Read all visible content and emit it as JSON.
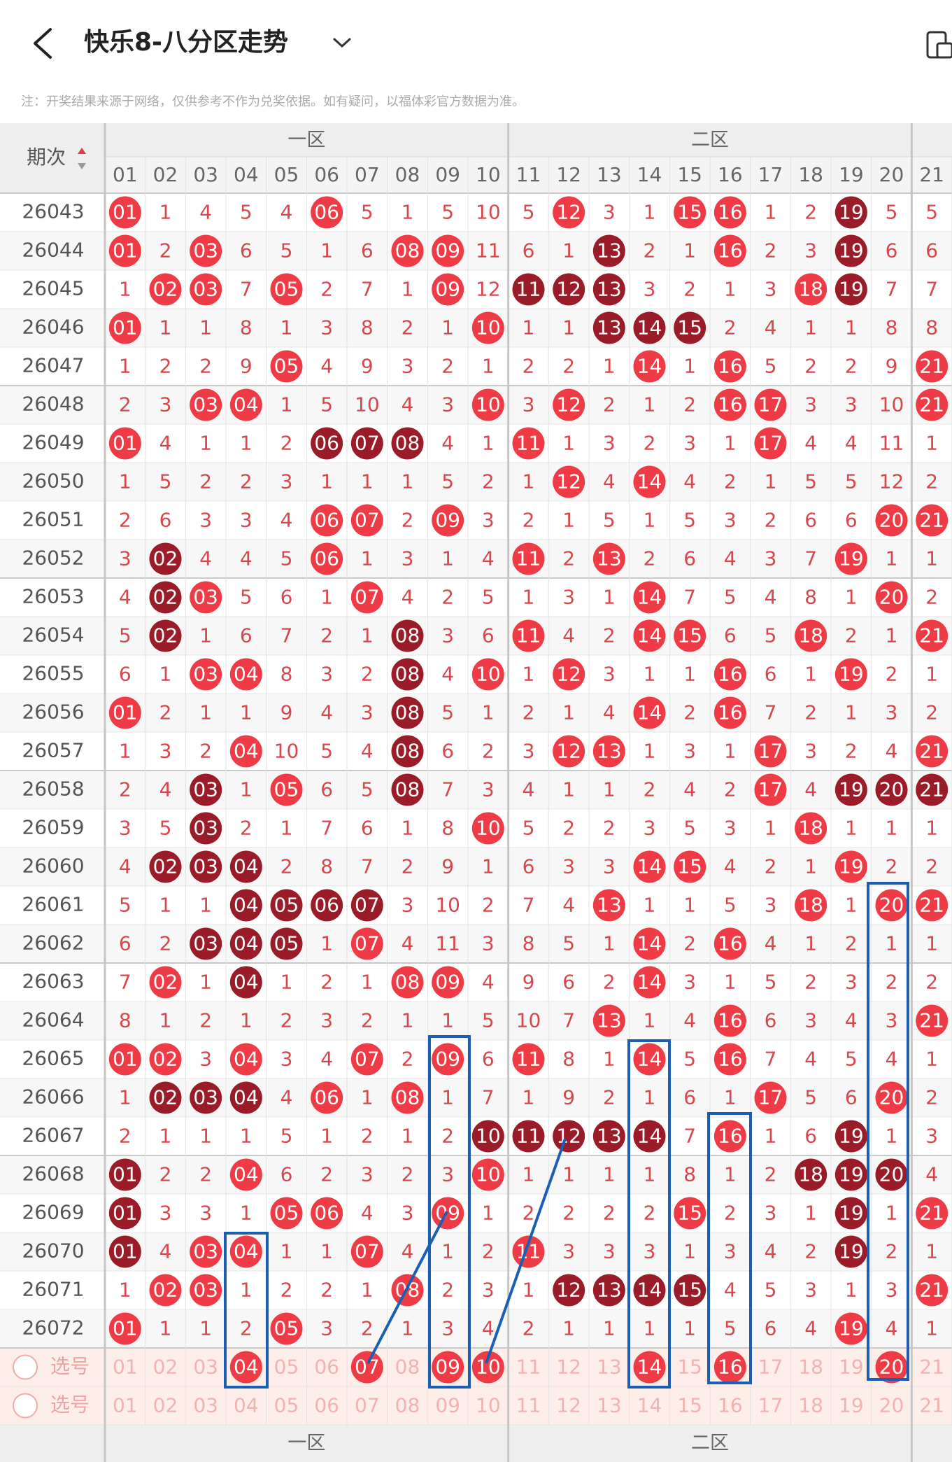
{
  "header": {
    "title": "快乐8-八分区走势"
  },
  "notice": "注：开奖结果来源于网络，仅供参考不作为兑奖依据。如有疑问，以福体彩官方数据为准。",
  "table": {
    "period_label": "期次",
    "zones": [
      "一区",
      "二区"
    ],
    "columns": [
      "01",
      "02",
      "03",
      "04",
      "05",
      "06",
      "07",
      "08",
      "09",
      "10",
      "11",
      "12",
      "13",
      "14",
      "15",
      "16",
      "17",
      "18",
      "19",
      "20",
      "21"
    ],
    "rows": [
      {
        "period": "26043",
        "cells": [
          "01",
          "1",
          "4",
          "5",
          "4",
          "06",
          "5",
          "1",
          "5",
          "10",
          "5",
          "12",
          "3",
          "1",
          "15",
          "16",
          "1",
          "2",
          "19",
          "5",
          "5"
        ],
        "marks": "r....r.....r..rr..d.."
      },
      {
        "period": "26044",
        "cells": [
          "01",
          "2",
          "03",
          "6",
          "5",
          "1",
          "6",
          "08",
          "09",
          "11",
          "6",
          "1",
          "13",
          "2",
          "1",
          "16",
          "2",
          "3",
          "19",
          "6",
          "6"
        ],
        "marks": "r.r....rr...d..r..d.."
      },
      {
        "period": "26045",
        "cells": [
          "1",
          "02",
          "03",
          "7",
          "05",
          "2",
          "7",
          "1",
          "09",
          "12",
          "11",
          "12",
          "13",
          "3",
          "2",
          "1",
          "3",
          "18",
          "19",
          "7",
          "7"
        ],
        "marks": ".rr.r...r.ddd....rd.."
      },
      {
        "period": "26046",
        "cells": [
          "01",
          "1",
          "1",
          "8",
          "1",
          "3",
          "8",
          "2",
          "1",
          "10",
          "1",
          "1",
          "13",
          "14",
          "15",
          "2",
          "4",
          "1",
          "1",
          "8",
          "8"
        ],
        "marks": "r........r..ddd......"
      },
      {
        "period": "26047",
        "cells": [
          "1",
          "2",
          "2",
          "9",
          "05",
          "4",
          "9",
          "3",
          "2",
          "1",
          "2",
          "2",
          "1",
          "14",
          "1",
          "16",
          "5",
          "2",
          "2",
          "9",
          "21"
        ],
        "marks": "....r........r.r....r"
      },
      {
        "period": "26048",
        "cells": [
          "2",
          "3",
          "03",
          "04",
          "1",
          "5",
          "10",
          "4",
          "3",
          "10",
          "3",
          "12",
          "2",
          "1",
          "2",
          "16",
          "17",
          "3",
          "3",
          "10",
          "21"
        ],
        "marks": "..rr.....r.r...rr...r"
      },
      {
        "period": "26049",
        "cells": [
          "01",
          "4",
          "1",
          "1",
          "2",
          "06",
          "07",
          "08",
          "4",
          "1",
          "11",
          "1",
          "3",
          "2",
          "3",
          "1",
          "17",
          "4",
          "4",
          "11",
          "1"
        ],
        "marks": "r....ddd..r.....r...."
      },
      {
        "period": "26050",
        "cells": [
          "1",
          "5",
          "2",
          "2",
          "3",
          "1",
          "1",
          "1",
          "5",
          "2",
          "1",
          "12",
          "4",
          "14",
          "4",
          "2",
          "1",
          "5",
          "5",
          "12",
          "2"
        ],
        "marks": "...........r.r......."
      },
      {
        "period": "26051",
        "cells": [
          "2",
          "6",
          "3",
          "3",
          "4",
          "06",
          "07",
          "2",
          "09",
          "3",
          "2",
          "1",
          "5",
          "1",
          "5",
          "3",
          "2",
          "6",
          "6",
          "20",
          "21"
        ],
        "marks": ".....rr.r..........rr"
      },
      {
        "period": "26052",
        "cells": [
          "3",
          "02",
          "4",
          "4",
          "5",
          "06",
          "1",
          "3",
          "1",
          "4",
          "11",
          "2",
          "13",
          "2",
          "6",
          "4",
          "3",
          "7",
          "19",
          "1",
          "1"
        ],
        "marks": ".d...r....r.r.....r.."
      },
      {
        "period": "26053",
        "cells": [
          "4",
          "02",
          "03",
          "5",
          "6",
          "1",
          "07",
          "4",
          "2",
          "5",
          "1",
          "3",
          "1",
          "14",
          "7",
          "5",
          "4",
          "8",
          "1",
          "20",
          "2"
        ],
        "marks": ".dr...r......r.....r."
      },
      {
        "period": "26054",
        "cells": [
          "5",
          "02",
          "1",
          "6",
          "7",
          "2",
          "1",
          "08",
          "3",
          "6",
          "11",
          "4",
          "2",
          "14",
          "15",
          "6",
          "5",
          "18",
          "2",
          "1",
          "21"
        ],
        "marks": ".d.....d..r..rr..r..r"
      },
      {
        "period": "26055",
        "cells": [
          "6",
          "1",
          "03",
          "04",
          "8",
          "3",
          "2",
          "08",
          "4",
          "10",
          "1",
          "12",
          "3",
          "1",
          "1",
          "16",
          "6",
          "1",
          "19",
          "2",
          "1"
        ],
        "marks": "..rr...d.r.r...r..r.."
      },
      {
        "period": "26056",
        "cells": [
          "01",
          "2",
          "1",
          "1",
          "9",
          "4",
          "3",
          "08",
          "5",
          "1",
          "2",
          "1",
          "4",
          "14",
          "2",
          "16",
          "7",
          "2",
          "1",
          "3",
          "2"
        ],
        "marks": "r......d.....r.r....."
      },
      {
        "period": "26057",
        "cells": [
          "1",
          "3",
          "2",
          "04",
          "10",
          "5",
          "4",
          "08",
          "6",
          "2",
          "3",
          "12",
          "13",
          "1",
          "3",
          "1",
          "17",
          "3",
          "2",
          "4",
          "21"
        ],
        "marks": "...r...d...rr...r...r"
      },
      {
        "period": "26058",
        "cells": [
          "2",
          "4",
          "03",
          "1",
          "05",
          "6",
          "5",
          "08",
          "7",
          "3",
          "4",
          "1",
          "1",
          "2",
          "4",
          "2",
          "17",
          "4",
          "19",
          "20",
          "21"
        ],
        "marks": "..d.r..d........r.ddd"
      },
      {
        "period": "26059",
        "cells": [
          "3",
          "5",
          "03",
          "2",
          "1",
          "7",
          "6",
          "1",
          "8",
          "10",
          "5",
          "2",
          "2",
          "3",
          "5",
          "3",
          "1",
          "18",
          "1",
          "1",
          "1"
        ],
        "marks": "..d......r.......r..."
      },
      {
        "period": "26060",
        "cells": [
          "4",
          "02",
          "03",
          "04",
          "2",
          "8",
          "7",
          "2",
          "9",
          "1",
          "6",
          "3",
          "3",
          "14",
          "15",
          "4",
          "2",
          "1",
          "19",
          "2",
          "2"
        ],
        "marks": ".ddd.........rr...r.."
      },
      {
        "period": "26061",
        "cells": [
          "5",
          "1",
          "1",
          "04",
          "05",
          "06",
          "07",
          "3",
          "10",
          "2",
          "7",
          "4",
          "13",
          "1",
          "1",
          "5",
          "3",
          "18",
          "1",
          "20",
          "21"
        ],
        "marks": "...dddd.....r....r.rr"
      },
      {
        "period": "26062",
        "cells": [
          "6",
          "2",
          "03",
          "04",
          "05",
          "1",
          "07",
          "4",
          "11",
          "3",
          "8",
          "5",
          "1",
          "14",
          "2",
          "16",
          "4",
          "1",
          "2",
          "1",
          "1"
        ],
        "marks": "..ddd.r......r.r....."
      },
      {
        "period": "26063",
        "cells": [
          "7",
          "02",
          "1",
          "04",
          "1",
          "2",
          "1",
          "08",
          "09",
          "4",
          "9",
          "6",
          "2",
          "14",
          "3",
          "1",
          "5",
          "2",
          "3",
          "2",
          "2"
        ],
        "marks": ".r.d...rr....r......."
      },
      {
        "period": "26064",
        "cells": [
          "8",
          "1",
          "2",
          "1",
          "2",
          "3",
          "2",
          "1",
          "1",
          "5",
          "10",
          "7",
          "13",
          "1",
          "4",
          "16",
          "6",
          "3",
          "4",
          "3",
          "21"
        ],
        "marks": "............r..r....r"
      },
      {
        "period": "26065",
        "cells": [
          "01",
          "02",
          "3",
          "04",
          "3",
          "4",
          "07",
          "2",
          "09",
          "6",
          "11",
          "8",
          "1",
          "14",
          "5",
          "16",
          "7",
          "4",
          "5",
          "4",
          "1"
        ],
        "marks": "rr.r..r.r.r..r.r....."
      },
      {
        "period": "26066",
        "cells": [
          "1",
          "02",
          "03",
          "04",
          "4",
          "06",
          "1",
          "08",
          "1",
          "7",
          "1",
          "9",
          "2",
          "1",
          "6",
          "1",
          "17",
          "5",
          "6",
          "20",
          "2"
        ],
        "marks": ".ddd.r.r........r..r."
      },
      {
        "period": "26067",
        "cells": [
          "2",
          "1",
          "1",
          "1",
          "5",
          "1",
          "2",
          "1",
          "2",
          "10",
          "11",
          "12",
          "13",
          "14",
          "7",
          "16",
          "1",
          "6",
          "19",
          "1",
          "3"
        ],
        "marks": ".........ddddd.r..d.."
      },
      {
        "period": "26068",
        "cells": [
          "01",
          "2",
          "2",
          "04",
          "6",
          "2",
          "3",
          "2",
          "3",
          "10",
          "1",
          "1",
          "1",
          "1",
          "8",
          "1",
          "2",
          "18",
          "19",
          "20",
          "4"
        ],
        "marks": "d..r.....r.......ddd."
      },
      {
        "period": "26069",
        "cells": [
          "01",
          "3",
          "3",
          "1",
          "05",
          "06",
          "4",
          "3",
          "09",
          "1",
          "2",
          "2",
          "2",
          "2",
          "15",
          "2",
          "3",
          "1",
          "19",
          "1",
          "21"
        ],
        "marks": "d...rr..r.....r...d.r"
      },
      {
        "period": "26070",
        "cells": [
          "01",
          "4",
          "03",
          "04",
          "1",
          "1",
          "07",
          "4",
          "1",
          "2",
          "11",
          "3",
          "3",
          "3",
          "1",
          "3",
          "4",
          "2",
          "19",
          "2",
          "1"
        ],
        "marks": "d.rr..r...r.......d.."
      },
      {
        "period": "26071",
        "cells": [
          "1",
          "02",
          "03",
          "1",
          "2",
          "2",
          "1",
          "08",
          "2",
          "3",
          "1",
          "12",
          "13",
          "14",
          "15",
          "4",
          "5",
          "3",
          "1",
          "3",
          "21"
        ],
        "marks": ".rr....r...dddd.....r"
      },
      {
        "period": "26072",
        "cells": [
          "01",
          "1",
          "1",
          "2",
          "05",
          "3",
          "2",
          "1",
          "3",
          "4",
          "2",
          "1",
          "1",
          "1",
          "1",
          "5",
          "6",
          "4",
          "19",
          "4",
          "1"
        ],
        "marks": "r...r.............r.."
      }
    ],
    "select_rows": [
      {
        "label": "选号",
        "picked": "...r..r.rr...r.r...r."
      },
      {
        "label": "选号",
        "picked": "....................."
      }
    ],
    "footer_zones": [
      "一区",
      "二区"
    ]
  }
}
